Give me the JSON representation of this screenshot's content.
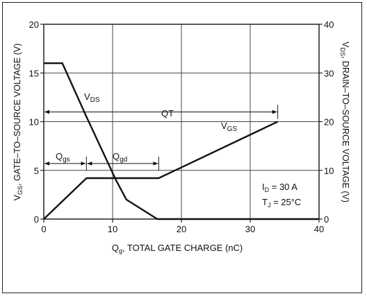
{
  "chart_data": {
    "type": "line",
    "xlabel": {
      "main": "Q",
      "sub": "g",
      "rest": ", TOTAL GATE CHARGE (nC)"
    },
    "ylabel_left": {
      "main": "V",
      "sub": "GS",
      "rest": ", GATE–TO–SOURCE VOLTAGE (V)"
    },
    "ylabel_right": {
      "main": "V",
      "sub": "DS",
      "rest": ", DRAIN–TO–SOURCE VOLTAGE (V)"
    },
    "xlim": [
      0,
      40
    ],
    "ylim_left": [
      0,
      20
    ],
    "ylim_right": [
      0,
      40
    ],
    "x_ticks": [
      "0",
      "10",
      "20",
      "30",
      "40"
    ],
    "y_left_ticks": [
      "0",
      "5",
      "10",
      "15",
      "20"
    ],
    "y_right_ticks": [
      "0",
      "10",
      "20",
      "30",
      "40"
    ],
    "grid": true,
    "series": [
      {
        "name": "V_DS",
        "axis": "right",
        "x": [
          0,
          2.7,
          6.2,
          10.5,
          12,
          16.5,
          40
        ],
        "y": [
          32,
          32,
          21,
          8,
          4,
          0,
          0
        ]
      },
      {
        "name": "V_GS",
        "axis": "left",
        "x": [
          0,
          6.2,
          16.7,
          34
        ],
        "y": [
          0,
          4.2,
          4.2,
          10
        ]
      }
    ],
    "series_labels": {
      "vds": {
        "main": "V",
        "sub": "DS"
      },
      "vgs": {
        "main": "V",
        "sub": "GS"
      }
    },
    "annotations": {
      "qt": {
        "label": "QT",
        "from": 0,
        "to": 34,
        "y": 11
      },
      "qgs": {
        "main": "Q",
        "sub": "gs",
        "from": 0,
        "to": 6.2,
        "y": 5.7
      },
      "qgd": {
        "main": "Q",
        "sub": "gd",
        "from": 6.2,
        "to": 16.7,
        "y": 5.7
      },
      "id": {
        "main": "I",
        "sub": "D",
        "rest": " = 30 A"
      },
      "tj": {
        "main": "T",
        "sub": "J",
        "rest": " = 25°C"
      }
    }
  }
}
